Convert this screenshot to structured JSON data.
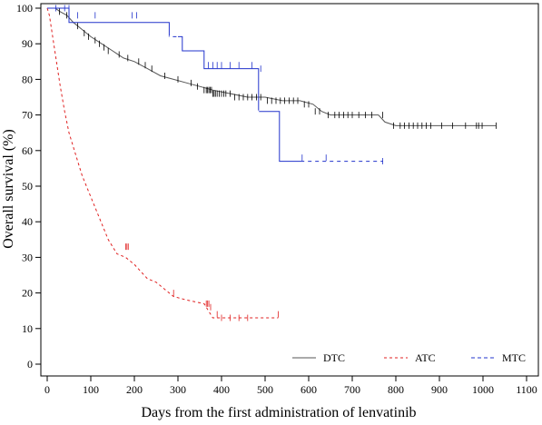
{
  "chart_data": {
    "type": "line",
    "title": "",
    "xlabel": "Days from the first administration of lenvatinib",
    "ylabel": "Overall survival (%)",
    "xlim": [
      0,
      1100
    ],
    "ylim": [
      0,
      100
    ],
    "xticks": [
      0,
      100,
      200,
      300,
      400,
      500,
      600,
      700,
      800,
      900,
      1000,
      1100
    ],
    "yticks": [
      0,
      10,
      20,
      30,
      40,
      50,
      60,
      70,
      80,
      90,
      100
    ],
    "grid": false,
    "legend_position": "bottom-right",
    "series": [
      {
        "name": "DTC",
        "color": "#555555",
        "dash": "solid",
        "points": [
          [
            0,
            100
          ],
          [
            18,
            100
          ],
          [
            30,
            99
          ],
          [
            45,
            98
          ],
          [
            60,
            96
          ],
          [
            80,
            94
          ],
          [
            100,
            92
          ],
          [
            125,
            90
          ],
          [
            150,
            88
          ],
          [
            175,
            86
          ],
          [
            200,
            85
          ],
          [
            230,
            83
          ],
          [
            260,
            81
          ],
          [
            290,
            80
          ],
          [
            320,
            79
          ],
          [
            350,
            78
          ],
          [
            380,
            77
          ],
          [
            420,
            76
          ],
          [
            460,
            75
          ],
          [
            500,
            75
          ],
          [
            540,
            74
          ],
          [
            580,
            74
          ],
          [
            610,
            73
          ],
          [
            630,
            71
          ],
          [
            650,
            70
          ],
          [
            700,
            70
          ],
          [
            760,
            70
          ],
          [
            775,
            68
          ],
          [
            800,
            67
          ],
          [
            1030,
            67
          ]
        ],
        "censors": [
          [
            28,
            99
          ],
          [
            45,
            98
          ],
          [
            70,
            95
          ],
          [
            85,
            93
          ],
          [
            95,
            92
          ],
          [
            110,
            91
          ],
          [
            120,
            90
          ],
          [
            130,
            89
          ],
          [
            140,
            88
          ],
          [
            165,
            87
          ],
          [
            185,
            86
          ],
          [
            210,
            85
          ],
          [
            225,
            84
          ],
          [
            240,
            83
          ],
          [
            270,
            81
          ],
          [
            300,
            80
          ],
          [
            330,
            79
          ],
          [
            345,
            78
          ],
          [
            360,
            77
          ],
          [
            365,
            77
          ],
          [
            368,
            77
          ],
          [
            371,
            77
          ],
          [
            374,
            77
          ],
          [
            377,
            77
          ],
          [
            380,
            76
          ],
          [
            383,
            76
          ],
          [
            386,
            76
          ],
          [
            390,
            76
          ],
          [
            395,
            76
          ],
          [
            400,
            76
          ],
          [
            405,
            76
          ],
          [
            410,
            76
          ],
          [
            420,
            76
          ],
          [
            430,
            75
          ],
          [
            440,
            75
          ],
          [
            450,
            75
          ],
          [
            460,
            75
          ],
          [
            470,
            75
          ],
          [
            480,
            75
          ],
          [
            490,
            75
          ],
          [
            505,
            74
          ],
          [
            515,
            74
          ],
          [
            525,
            74
          ],
          [
            535,
            74
          ],
          [
            545,
            74
          ],
          [
            555,
            74
          ],
          [
            565,
            74
          ],
          [
            575,
            74
          ],
          [
            590,
            73
          ],
          [
            600,
            73
          ],
          [
            615,
            71
          ],
          [
            625,
            71
          ],
          [
            645,
            70
          ],
          [
            660,
            70
          ],
          [
            670,
            70
          ],
          [
            680,
            70
          ],
          [
            690,
            70
          ],
          [
            700,
            70
          ],
          [
            715,
            70
          ],
          [
            730,
            70
          ],
          [
            745,
            70
          ],
          [
            770,
            70
          ],
          [
            795,
            67
          ],
          [
            810,
            67
          ],
          [
            820,
            67
          ],
          [
            830,
            67
          ],
          [
            840,
            67
          ],
          [
            850,
            67
          ],
          [
            860,
            67
          ],
          [
            870,
            67
          ],
          [
            880,
            67
          ],
          [
            905,
            67
          ],
          [
            930,
            67
          ],
          [
            960,
            67
          ],
          [
            985,
            67
          ],
          [
            990,
            67
          ],
          [
            998,
            67
          ],
          [
            1030,
            67
          ]
        ]
      },
      {
        "name": "ATC",
        "color": "#e02020",
        "dash": "3,3",
        "points": [
          [
            0,
            100
          ],
          [
            5,
            98
          ],
          [
            10,
            94
          ],
          [
            15,
            90
          ],
          [
            20,
            86
          ],
          [
            25,
            82
          ],
          [
            30,
            78
          ],
          [
            40,
            71
          ],
          [
            50,
            65
          ],
          [
            60,
            61
          ],
          [
            70,
            57
          ],
          [
            80,
            53
          ],
          [
            90,
            50
          ],
          [
            100,
            47
          ],
          [
            110,
            44
          ],
          [
            120,
            41
          ],
          [
            130,
            38
          ],
          [
            140,
            35
          ],
          [
            150,
            33
          ],
          [
            160,
            31
          ],
          [
            180,
            30
          ],
          [
            200,
            28
          ],
          [
            215,
            26
          ],
          [
            230,
            24
          ],
          [
            250,
            23
          ],
          [
            270,
            21
          ],
          [
            290,
            19
          ],
          [
            320,
            18
          ],
          [
            360,
            17
          ],
          [
            380,
            13
          ],
          [
            400,
            13
          ],
          [
            530,
            13
          ]
        ],
        "censors": [
          [
            180,
            33
          ],
          [
            183,
            33
          ],
          [
            186,
            33
          ],
          [
            290,
            20
          ],
          [
            365,
            17
          ],
          [
            368,
            17
          ],
          [
            371,
            17
          ],
          [
            375,
            16
          ],
          [
            390,
            14
          ],
          [
            400,
            13
          ],
          [
            420,
            13
          ],
          [
            440,
            13
          ],
          [
            460,
            13
          ],
          [
            530,
            14
          ]
        ]
      },
      {
        "name": "MTC",
        "color": "#2233cc",
        "dash": "solid",
        "points": [
          [
            0,
            100
          ],
          [
            50,
            100
          ],
          [
            50,
            96
          ],
          [
            280,
            96
          ],
          [
            280,
            92
          ],
          [
            310,
            92
          ],
          [
            310,
            88
          ],
          [
            360,
            88
          ],
          [
            360,
            83
          ],
          [
            485,
            83
          ],
          [
            485,
            71
          ],
          [
            533,
            71
          ],
          [
            533,
            57
          ],
          [
            770,
            57
          ]
        ],
        "dashed_segments": [
          [
            280,
            300
          ],
          [
            480,
            486
          ],
          [
            590,
            770
          ]
        ],
        "censors": [
          [
            20,
            100
          ],
          [
            40,
            100
          ],
          [
            50,
            100
          ],
          [
            70,
            98
          ],
          [
            110,
            98
          ],
          [
            195,
            98
          ],
          [
            205,
            98
          ],
          [
            370,
            84
          ],
          [
            380,
            84
          ],
          [
            390,
            84
          ],
          [
            400,
            84
          ],
          [
            420,
            84
          ],
          [
            440,
            84
          ],
          [
            470,
            84
          ],
          [
            490,
            83
          ],
          [
            585,
            58
          ],
          [
            640,
            58
          ],
          [
            770,
            57
          ]
        ]
      }
    ]
  }
}
